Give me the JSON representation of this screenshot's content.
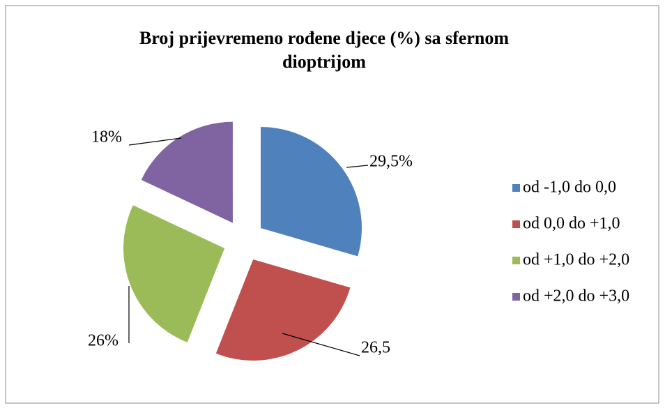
{
  "chart_data": {
    "type": "pie",
    "title": "Broj prijevremeno rođene djece (%) sa sfernom dioptrijom",
    "categories": [
      "od -1,0 do 0,0",
      "od 0,0 do +1,0",
      "od +1,0 do +2,0",
      "od +2,0 do +3,0"
    ],
    "values": [
      29.5,
      26.5,
      26,
      18
    ],
    "value_labels": [
      "29,5%",
      "26,5",
      "26%",
      "18%"
    ],
    "colors": [
      "#4f81bd",
      "#c0504d",
      "#9bbb59",
      "#8064a2"
    ],
    "legend": "right"
  }
}
